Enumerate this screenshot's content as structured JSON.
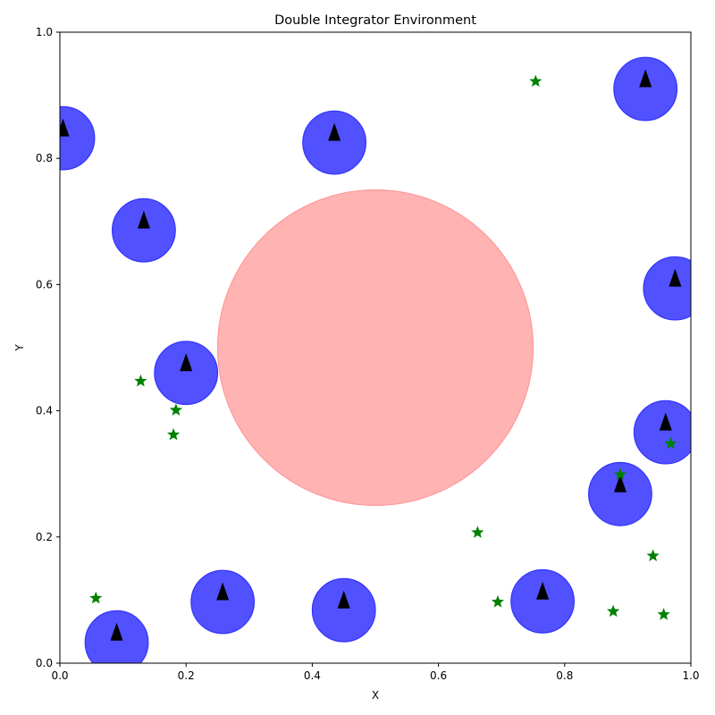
{
  "chart_data": {
    "type": "scatter",
    "title": "Double Integrator Environment",
    "xlabel": "X",
    "ylabel": "Y",
    "xlim": [
      0.0,
      1.0
    ],
    "ylim": [
      0.0,
      1.0
    ],
    "xticks": [
      "0.0",
      "0.2",
      "0.4",
      "0.6",
      "0.8",
      "1.0"
    ],
    "yticks": [
      "0.0",
      "0.2",
      "0.4",
      "0.6",
      "0.8",
      "1.0"
    ],
    "grid": false,
    "legend": "none",
    "obstacle": {
      "x": 0.5,
      "y": 0.5,
      "r": 0.25,
      "color": "#ff9999"
    },
    "agent_radius": 0.05,
    "agent_color": "#3333ff",
    "marker_color": "#000000",
    "goal_color": "#008000",
    "agents": [
      {
        "x": 0.005,
        "y": 0.832
      },
      {
        "x": 0.435,
        "y": 0.825
      },
      {
        "x": 0.928,
        "y": 0.91
      },
      {
        "x": 0.133,
        "y": 0.686
      },
      {
        "x": 0.975,
        "y": 0.594
      },
      {
        "x": 0.2,
        "y": 0.46
      },
      {
        "x": 0.96,
        "y": 0.366
      },
      {
        "x": 0.888,
        "y": 0.268
      },
      {
        "x": 0.258,
        "y": 0.097
      },
      {
        "x": 0.45,
        "y": 0.084
      },
      {
        "x": 0.765,
        "y": 0.098
      },
      {
        "x": 0.09,
        "y": 0.033
      }
    ],
    "goals": [
      {
        "x": 0.754,
        "y": 0.922
      },
      {
        "x": 0.128,
        "y": 0.447
      },
      {
        "x": 0.184,
        "y": 0.401
      },
      {
        "x": 0.18,
        "y": 0.362
      },
      {
        "x": 0.968,
        "y": 0.348
      },
      {
        "x": 0.888,
        "y": 0.299
      },
      {
        "x": 0.662,
        "y": 0.207
      },
      {
        "x": 0.94,
        "y": 0.17
      },
      {
        "x": 0.057,
        "y": 0.103
      },
      {
        "x": 0.694,
        "y": 0.097
      },
      {
        "x": 0.877,
        "y": 0.082
      },
      {
        "x": 0.957,
        "y": 0.077
      }
    ]
  }
}
